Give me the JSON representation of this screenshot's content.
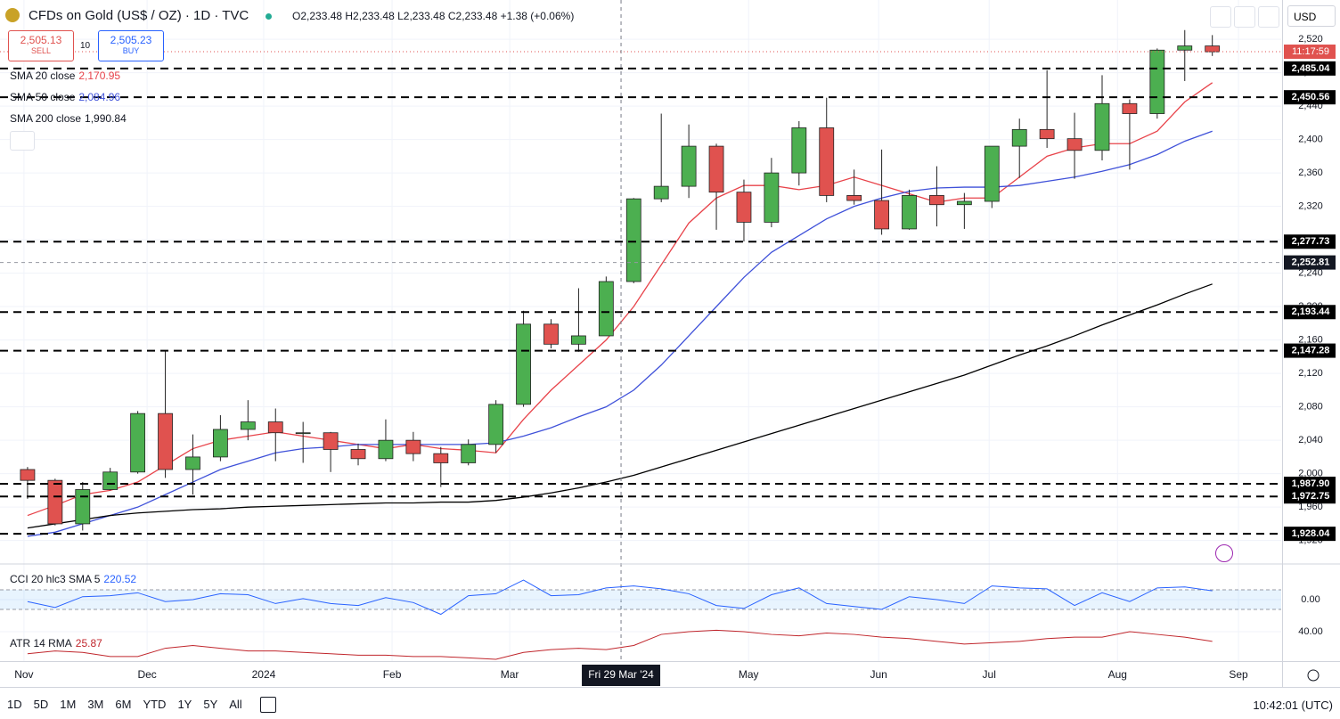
{
  "header": {
    "symbol": "CFDs on Gold (US$ / OZ) · 1D · TVC",
    "open": "O2,233.48",
    "high": "H2,233.48",
    "low": "L2,233.48",
    "close": "C2,233.48",
    "change": "+1.38 (+0.06%)"
  },
  "trade": {
    "sell_price": "2,505.13",
    "sell": "SELL",
    "spread": "10",
    "buy_price": "2,505.23",
    "buy": "BUY"
  },
  "currency": "USD",
  "countdown": "11:17:59",
  "crosshair_date_label": "Fri 29 Mar '24",
  "toolbar": {
    "ranges": [
      "1D",
      "5D",
      "1M",
      "3M",
      "6M",
      "YTD",
      "1Y",
      "5Y",
      "All"
    ],
    "clock": "10:42:01 (UTC)"
  },
  "chart_data": [
    {
      "type": "candlestick",
      "categories": [
        null,
        null,
        null,
        null,
        null,
        null,
        null,
        null,
        null,
        null,
        null,
        null,
        null,
        null,
        null,
        null,
        null,
        null,
        null,
        null,
        null,
        null,
        null,
        null,
        null,
        null,
        null,
        null,
        null,
        null,
        null,
        null,
        null,
        null,
        null,
        null,
        null,
        null,
        null,
        null,
        null,
        null,
        null,
        null
      ],
      "open": [
        2005,
        1992,
        1940,
        1981,
        2002,
        2072,
        2005,
        2020,
        2053,
        2062,
        2049,
        2049,
        2029,
        2018,
        2040,
        2024,
        2013,
        2035,
        2083,
        2179,
        2155,
        2165,
        2230,
        2329,
        2344,
        2392,
        2337,
        2301,
        2360,
        2414,
        2333,
        2327,
        2293,
        2333,
        2322,
        2326,
        2392,
        2412,
        2401,
        2387,
        2443,
        2431,
        2507,
        2512
      ],
      "high": [
        2008,
        1994,
        1990,
        2007,
        2075,
        2147,
        2047,
        2070,
        2088,
        2078,
        2062,
        2050,
        2036,
        2065,
        2050,
        2032,
        2041,
        2088,
        2195,
        2185,
        2222,
        2236,
        2330,
        2431,
        2418,
        2395,
        2352,
        2378,
        2422,
        2450,
        2364,
        2388,
        2340,
        2368,
        2336,
        2392,
        2425,
        2483,
        2432,
        2477,
        2448,
        2509,
        2531,
        2525
      ],
      "low": [
        1970,
        1938,
        1932,
        1980,
        2000,
        1995,
        1975,
        2015,
        2040,
        2015,
        2013,
        2002,
        2010,
        2015,
        2015,
        1984,
        2010,
        2025,
        2080,
        2150,
        2146,
        2165,
        2228,
        2325,
        2330,
        2292,
        2278,
        2295,
        2345,
        2325,
        2322,
        2286,
        2292,
        2296,
        2293,
        2318,
        2354,
        2390,
        2353,
        2375,
        2364,
        2425,
        2470,
        2500
      ],
      "close": [
        1992,
        1940,
        1981,
        2002,
        2072,
        2005,
        2020,
        2053,
        2062,
        2049,
        2049,
        2029,
        2018,
        2040,
        2024,
        2013,
        2035,
        2083,
        2179,
        2155,
        2165,
        2230,
        2329,
        2344,
        2392,
        2337,
        2301,
        2360,
        2414,
        2333,
        2327,
        2293,
        2333,
        2322,
        2326,
        2392,
        2412,
        2401,
        2387,
        2443,
        2431,
        2507,
        2512,
        2505
      ],
      "up_color": "#4caf50",
      "down_color": "#e0524f",
      "xlim": [
        -1,
        45.5
      ],
      "xticks": [
        {
          "value": -0.13,
          "label": "Nov"
        },
        {
          "value": 4.34,
          "label": "Dec"
        },
        {
          "value": 8.57,
          "label": "2024"
        },
        {
          "value": 13.23,
          "label": "Feb"
        },
        {
          "value": 17.5,
          "label": "Mar"
        },
        {
          "value": 26.17,
          "label": "May"
        },
        {
          "value": 30.89,
          "label": "Jun"
        },
        {
          "value": 34.9,
          "label": "Jul"
        },
        {
          "value": 39.56,
          "label": "Aug"
        },
        {
          "value": 43.95,
          "label": "Sep"
        }
      ],
      "ylim": [
        1893,
        2567
      ],
      "yticks": [
        {
          "value": 1920,
          "label": "1,920"
        },
        {
          "value": 1960,
          "label": "1,960"
        },
        {
          "value": 2000,
          "label": "2,000"
        },
        {
          "value": 2040,
          "label": "2,040"
        },
        {
          "value": 2080,
          "label": "2,080"
        },
        {
          "value": 2120,
          "label": "2,120"
        },
        {
          "value": 2160,
          "label": "2,160"
        },
        {
          "value": 2200,
          "label": "2,200"
        },
        {
          "value": 2240,
          "label": "2,240"
        },
        {
          "value": 2280,
          "label": "2,280"
        },
        {
          "value": 2320,
          "label": "2,320"
        },
        {
          "value": 2360,
          "label": "2,360"
        },
        {
          "value": 2400,
          "label": "2,400"
        },
        {
          "value": 2440,
          "label": "2,440"
        },
        {
          "value": 2480,
          "label": "2,480"
        },
        {
          "value": 2520,
          "label": "2,520"
        }
      ],
      "grid": true,
      "last": 2505.13,
      "overlays": [
        {
          "name": "SMA 20 close",
          "legend_value": "2,170.95",
          "color": "#e8434a",
          "values": [
            1950,
            1962,
            1975,
            1980,
            1990,
            2010,
            2030,
            2040,
            2045,
            2050,
            2045,
            2040,
            2035,
            2030,
            2035,
            2030,
            2028,
            2025,
            2065,
            2100,
            2130,
            2160,
            2200,
            2250,
            2300,
            2330,
            2345,
            2345,
            2340,
            2345,
            2355,
            2345,
            2335,
            2325,
            2330,
            2330,
            2355,
            2380,
            2390,
            2395,
            2395,
            2410,
            2445,
            2468
          ]
        },
        {
          "name": "SMA 50 close",
          "legend_value": "2,084.96",
          "color": "#3f51d9",
          "values": [
            1925,
            1930,
            1940,
            1950,
            1960,
            1975,
            1990,
            2005,
            2015,
            2025,
            2030,
            2032,
            2035,
            2035,
            2035,
            2035,
            2035,
            2037,
            2045,
            2055,
            2068,
            2080,
            2100,
            2130,
            2165,
            2200,
            2235,
            2265,
            2285,
            2305,
            2320,
            2330,
            2338,
            2342,
            2343,
            2343,
            2345,
            2350,
            2355,
            2362,
            2370,
            2382,
            2398,
            2410
          ]
        },
        {
          "name": "SMA 200 close",
          "legend_value": "1,990.84",
          "color": "#000000",
          "values": [
            1935,
            1940,
            1945,
            1950,
            1953,
            1955,
            1957,
            1958,
            1960,
            1961,
            1962,
            1963,
            1964,
            1965,
            1965,
            1966,
            1966,
            1968,
            1972,
            1977,
            1983,
            1990,
            1998,
            2008,
            2018,
            2028,
            2038,
            2048,
            2058,
            2068,
            2078,
            2088,
            2098,
            2108,
            2118,
            2130,
            2142,
            2153,
            2165,
            2178,
            2190,
            2202,
            2215,
            2227
          ]
        }
      ],
      "levels": [
        {
          "value": 2485.04,
          "label": "2,485.04"
        },
        {
          "value": 2450.56,
          "label": "2,450.56"
        },
        {
          "value": 2277.73,
          "label": "2,277.73"
        },
        {
          "value": 2193.44,
          "label": "2,193.44"
        },
        {
          "value": 2147.28,
          "label": "2,147.28"
        },
        {
          "value": 1987.9,
          "label": "1,987.90"
        },
        {
          "value": 1972.75,
          "label": "1,972.75"
        },
        {
          "value": 1928.04,
          "label": "1,928.04"
        }
      ],
      "crosshair": {
        "x": 21.54,
        "y": {
          "value": 2252.81,
          "label": "2,252.81"
        }
      }
    },
    {
      "type": "line",
      "name": "CCI 20 hlc3 SMA 5",
      "legend_value": "220.52",
      "color": "#2962ff",
      "values": [
        -20,
        -80,
        30,
        40,
        70,
        -20,
        0,
        60,
        50,
        -40,
        10,
        -40,
        -60,
        20,
        -30,
        -150,
        40,
        60,
        200,
        40,
        50,
        120,
        140,
        110,
        60,
        -60,
        -90,
        50,
        120,
        -40,
        -70,
        -100,
        30,
        0,
        -40,
        140,
        120,
        110,
        -60,
        70,
        -20,
        120,
        130,
        90
      ],
      "band": [
        -100,
        100
      ],
      "band_color": "#2196f3",
      "ylim": [
        -200,
        355
      ],
      "yticks": [
        {
          "value": 0,
          "label": "0.00"
        }
      ]
    },
    {
      "type": "line",
      "name": "ATR 14 RMA",
      "legend_value": "25.87",
      "color": "#c0262c",
      "values": [
        24,
        26,
        25,
        22,
        22,
        28,
        30,
        28,
        26,
        26,
        25,
        24,
        23,
        23,
        22,
        22,
        21,
        20,
        25,
        27,
        28,
        27,
        30,
        38,
        40,
        41,
        40,
        38,
        37,
        39,
        38,
        36,
        35,
        33,
        31,
        32,
        33,
        35,
        36,
        36,
        40,
        38,
        36,
        33
      ],
      "ylim": [
        18.7,
        49
      ],
      "yticks": [
        {
          "value": 40,
          "label": "40.00"
        }
      ]
    }
  ]
}
